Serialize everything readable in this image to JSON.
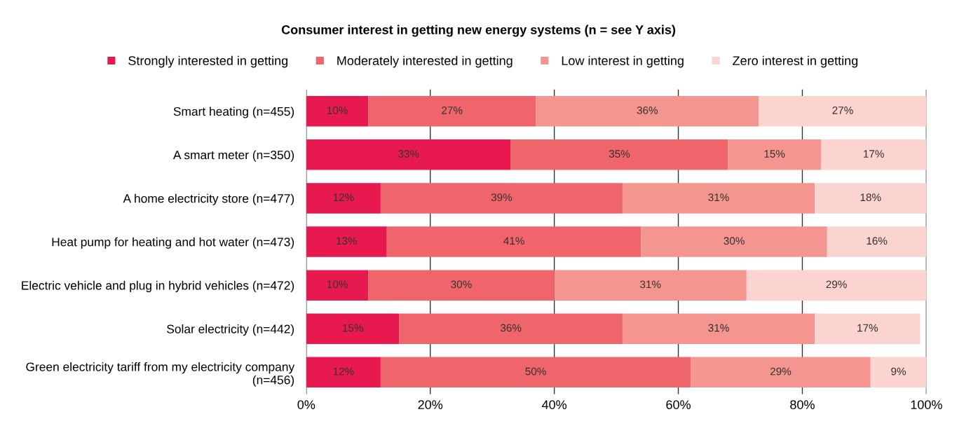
{
  "chart_data": {
    "type": "bar",
    "orientation": "horizontal",
    "stacked": true,
    "title": "Consumer interest in getting new energy systems (n = see Y axis)",
    "categories": [
      "Smart heating (n=455)",
      "A smart meter (n=350)",
      "A home electricity store (n=477)",
      "Heat pump for heating and hot water (n=473)",
      "Electric vehicle and plug in hybrid vehicles (n=472)",
      "Solar electricity (n=442)",
      "Green electricity tariff from my electricity company\n(n=456)"
    ],
    "series": [
      {
        "name": "Strongly interested in getting",
        "color": "#e8194f",
        "values": [
          10,
          33,
          12,
          13,
          10,
          15,
          12
        ],
        "value_labels": [
          "10%",
          "33%",
          "12%",
          "13%",
          "10%",
          "15%",
          "12%"
        ]
      },
      {
        "name": "Moderately interested in getting",
        "color": "#f0646c",
        "values": [
          27,
          35,
          39,
          41,
          30,
          36,
          50
        ],
        "value_labels": [
          "27%",
          "35%",
          "39%",
          "41%",
          "30%",
          "36%",
          "50%"
        ]
      },
      {
        "name": "Low interest in getting",
        "color": "#f5958f",
        "values": [
          36,
          15,
          31,
          30,
          31,
          31,
          29
        ],
        "value_labels": [
          "36%",
          "15%",
          "31%",
          "30%",
          "31%",
          "31%",
          "29%"
        ]
      },
      {
        "name": "Zero interest in getting",
        "color": "#fbd3cf",
        "values": [
          27,
          17,
          18,
          16,
          29,
          17,
          9
        ],
        "value_labels": [
          "27%",
          "17%",
          "18%",
          "16%",
          "29%",
          "17%",
          "9%"
        ]
      }
    ],
    "xlim": [
      0,
      100
    ],
    "xticks": [
      {
        "value": 0,
        "label": "0%"
      },
      {
        "value": 20,
        "label": "20%"
      },
      {
        "value": 40,
        "label": "40%"
      },
      {
        "value": 60,
        "label": "60%"
      },
      {
        "value": 80,
        "label": "80%"
      },
      {
        "value": 100,
        "label": "100%"
      }
    ],
    "grid": "x",
    "legend": "top"
  }
}
